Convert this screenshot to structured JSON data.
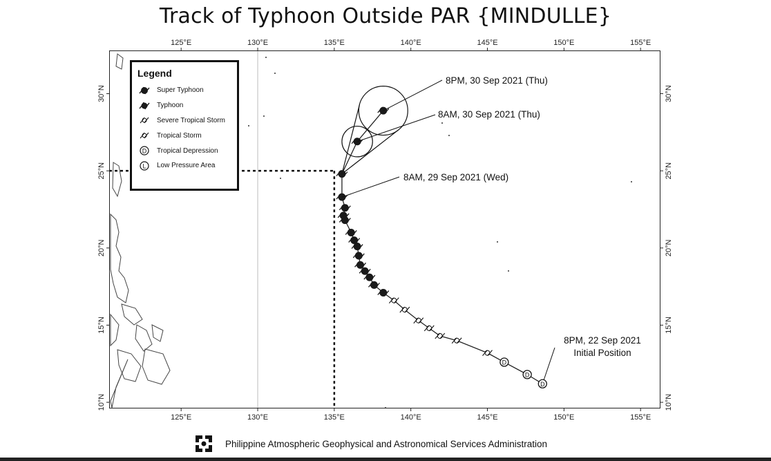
{
  "title": "Track of Typhoon Outside PAR {MINDULLE}",
  "axes": {
    "lon_labels": [
      "125°E",
      "130°E",
      "135°E",
      "140°E",
      "145°E",
      "150°E",
      "155°E"
    ],
    "lon_values": [
      125,
      130,
      135,
      140,
      145,
      150,
      155
    ],
    "lat_labels": [
      "10°N",
      "15°N",
      "20°N",
      "25°N",
      "30°N"
    ],
    "lat_values": [
      10,
      15,
      20,
      25,
      30
    ],
    "lon_range": [
      120.3,
      156.3
    ],
    "lat_range": [
      9.6,
      32.8
    ]
  },
  "legend": {
    "title": "Legend",
    "items": [
      {
        "label": "Super Typhoon",
        "icon": "super-typhoon-icon"
      },
      {
        "label": "Typhoon",
        "icon": "typhoon-icon"
      },
      {
        "label": "Severe Tropical Storm",
        "icon": "severe-tropical-storm-icon"
      },
      {
        "label": "Tropical Storm",
        "icon": "tropical-storm-icon"
      },
      {
        "label": "Tropical Depression",
        "icon": "tropical-depression-icon"
      },
      {
        "label": "Low Pressure Area",
        "icon": "low-pressure-area-icon"
      }
    ]
  },
  "annotations": {
    "forecast_2": "8PM, 30 Sep 2021 (Thu)",
    "forecast_1": "8AM, 30 Sep 2021 (Thu)",
    "latest": "8AM, 29 Sep 2021 (Wed)",
    "initial_time": "8PM, 22 Sep 2021",
    "initial_label": "Initial Position"
  },
  "par_boundary": {
    "lon": 135,
    "lat": 25
  },
  "track": [
    {
      "lon": 148.6,
      "lat": 11.2,
      "cat": "TD"
    },
    {
      "lon": 147.6,
      "lat": 11.8,
      "cat": "TD"
    },
    {
      "lon": 146.1,
      "lat": 12.6,
      "cat": "TD"
    },
    {
      "lon": 145.0,
      "lat": 13.2,
      "cat": "TS"
    },
    {
      "lon": 143.0,
      "lat": 14.0,
      "cat": "TS"
    },
    {
      "lon": 141.9,
      "lat": 14.3,
      "cat": "TS"
    },
    {
      "lon": 141.2,
      "lat": 14.8,
      "cat": "TS"
    },
    {
      "lon": 140.5,
      "lat": 15.3,
      "cat": "TS"
    },
    {
      "lon": 139.6,
      "lat": 16.0,
      "cat": "TS"
    },
    {
      "lon": 138.9,
      "lat": 16.6,
      "cat": "STS"
    },
    {
      "lon": 138.2,
      "lat": 17.1,
      "cat": "TY"
    },
    {
      "lon": 137.6,
      "lat": 17.6,
      "cat": "TY"
    },
    {
      "lon": 137.3,
      "lat": 18.1,
      "cat": "TY"
    },
    {
      "lon": 137.0,
      "lat": 18.5,
      "cat": "TY"
    },
    {
      "lon": 136.7,
      "lat": 18.9,
      "cat": "TY"
    },
    {
      "lon": 136.6,
      "lat": 19.5,
      "cat": "TY"
    },
    {
      "lon": 136.5,
      "lat": 20.1,
      "cat": "TY"
    },
    {
      "lon": 136.3,
      "lat": 20.5,
      "cat": "TY"
    },
    {
      "lon": 136.1,
      "lat": 21.0,
      "cat": "TY"
    },
    {
      "lon": 135.7,
      "lat": 21.8,
      "cat": "TY"
    },
    {
      "lon": 135.6,
      "lat": 22.1,
      "cat": "TY"
    },
    {
      "lon": 135.7,
      "lat": 22.6,
      "cat": "TY"
    },
    {
      "lon": 135.5,
      "lat": 23.3,
      "cat": "TY"
    }
  ],
  "forecast": [
    {
      "lon": 135.5,
      "lat": 24.8,
      "cat": "TY",
      "radius_deg": 0
    },
    {
      "lon": 136.5,
      "lat": 26.9,
      "cat": "TY",
      "radius_deg": 1.0
    },
    {
      "lon": 138.2,
      "lat": 28.9,
      "cat": "TY",
      "radius_deg": 1.6
    }
  ],
  "footer": {
    "agency": "Philippine Atmospheric Geophysical and Astronomical Services Administration",
    "logo": "pagasa-logo-icon"
  },
  "colors": {
    "track": "#222222",
    "frame": "#222222",
    "gridline": "#bbbbbb"
  }
}
